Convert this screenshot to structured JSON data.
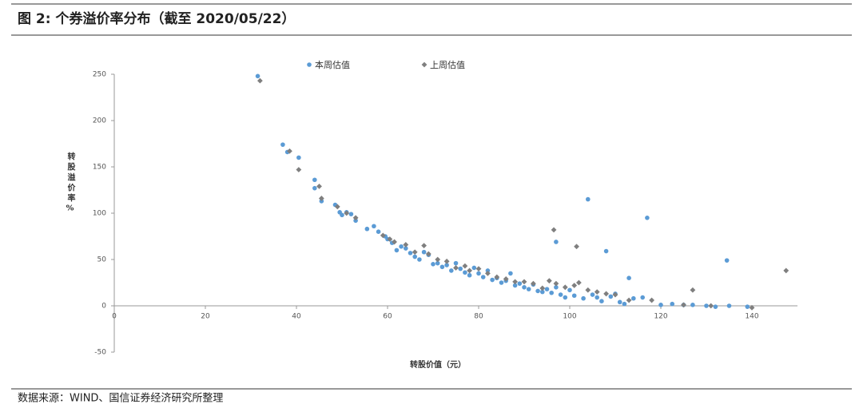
{
  "chart_data": {
    "type": "scatter",
    "title": "图 2:  个券溢价率分布（截至 2020/05/22）",
    "source": "数据来源：WIND、国信证券经济研究所整理",
    "x_label": "转股价值（元）",
    "y_label": "转股溢价率%",
    "xlim": [
      0,
      150
    ],
    "xticks": [
      0,
      20,
      40,
      60,
      80,
      100,
      120,
      140
    ],
    "ylim": [
      -50,
      250
    ],
    "yticks": [
      -50,
      0,
      50,
      100,
      150,
      200,
      250
    ],
    "legend": "top",
    "series": [
      {
        "name": "本周估值",
        "color": "#5b9bd5",
        "marker": "circle",
        "x": [
          31.5,
          37,
          38,
          40.5,
          44,
          44,
          45.5,
          48.5,
          49.5,
          50,
          51,
          52,
          53,
          55.5,
          57,
          58,
          59.5,
          60,
          61,
          62,
          63,
          64,
          65,
          66,
          67,
          68,
          69,
          70,
          71,
          72,
          73,
          74,
          75,
          76,
          77,
          78,
          79,
          80,
          81,
          82,
          83,
          84,
          85,
          86,
          87,
          88,
          89,
          90,
          91,
          92,
          93,
          94,
          95,
          96,
          97,
          97,
          98,
          99,
          100,
          101,
          103,
          104,
          105,
          106,
          107,
          108,
          109,
          110,
          111,
          112,
          113,
          114,
          116,
          117,
          120,
          122.5,
          125,
          127,
          130,
          132,
          134.5,
          135,
          139
        ],
        "values": [
          248,
          174,
          166,
          160,
          136,
          127,
          113,
          109,
          101,
          98,
          101,
          99,
          92,
          83,
          86,
          80,
          75,
          72,
          68,
          60,
          64,
          62,
          57,
          53,
          50,
          58,
          55,
          45,
          46,
          42,
          44,
          38,
          46,
          40,
          36,
          33,
          41,
          35,
          31,
          38,
          28,
          30,
          25,
          27,
          35,
          22,
          24,
          20,
          18,
          23,
          16,
          15,
          18,
          14,
          69,
          20,
          12,
          9,
          17,
          11,
          8,
          115,
          12,
          9,
          5,
          59,
          10,
          13,
          4,
          2,
          30,
          8,
          9,
          95,
          1,
          2,
          1,
          1,
          0,
          -1,
          49,
          0,
          -1
        ]
      },
      {
        "name": "上周估值",
        "color": "#7f7f7f",
        "marker": "diamond",
        "x": [
          32,
          38.5,
          40.5,
          45,
          45.5,
          49,
          51,
          53,
          59,
          60.5,
          61.5,
          64,
          66,
          68,
          69,
          71,
          73,
          75,
          77,
          78,
          80,
          82,
          84,
          86,
          88,
          90,
          92,
          94,
          95.5,
          96.5,
          97,
          99,
          101,
          101.5,
          102,
          104,
          106,
          108,
          110,
          113,
          118,
          125,
          127,
          131,
          140,
          147.5
        ],
        "values": [
          243,
          167,
          147,
          129,
          116,
          107,
          100,
          95,
          76,
          72,
          69,
          66,
          58,
          65,
          56,
          50,
          48,
          41,
          43,
          38,
          40,
          35,
          31,
          29,
          26,
          26,
          24,
          19,
          27,
          82,
          24,
          20,
          22,
          64,
          25,
          17,
          15,
          13,
          12,
          6,
          6,
          1,
          17,
          0,
          -2,
          38
        ]
      }
    ]
  }
}
